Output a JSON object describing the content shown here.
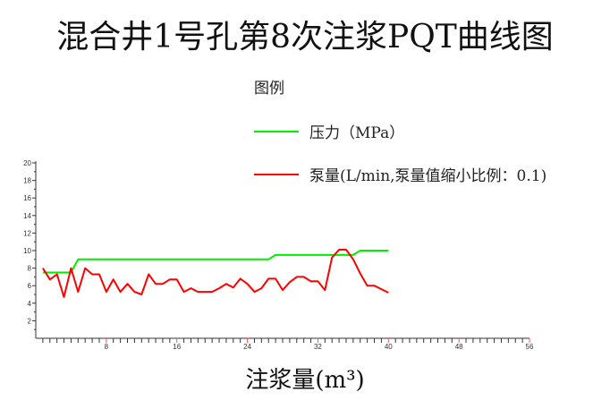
{
  "chart_data": {
    "type": "line",
    "title": "混合井1号孔第8次注浆PQT曲线图",
    "xlabel": "注浆量(m³)",
    "ylabel": "",
    "legend_title": "图例",
    "legend_placement": "top-right",
    "xlim": [
      0,
      56
    ],
    "ylim": [
      0,
      20
    ],
    "xticks": [
      8,
      16,
      24,
      32,
      40,
      48,
      56
    ],
    "yticks": [
      2,
      4,
      6,
      8,
      10,
      12,
      14,
      16,
      18,
      20
    ],
    "grid": false,
    "x": [
      0.8,
      1.6,
      2.4,
      3.2,
      4.0,
      4.8,
      5.6,
      6.4,
      7.2,
      8.0,
      8.8,
      9.6,
      10.4,
      11.2,
      12.0,
      12.8,
      13.6,
      14.4,
      15.2,
      16.0,
      16.8,
      17.6,
      18.4,
      19.2,
      20.0,
      20.8,
      21.6,
      22.4,
      23.2,
      24.0,
      24.8,
      25.6,
      26.4,
      27.2,
      28.0,
      28.8,
      29.6,
      30.4,
      31.2,
      32.0,
      32.8,
      33.6,
      34.4,
      35.2,
      36.0,
      36.8,
      37.6,
      38.4,
      39.2,
      40.0
    ],
    "series": [
      {
        "name": "压力（MPa）",
        "color": "#00ee00",
        "values": [
          7.5,
          7.5,
          7.5,
          7.5,
          7.5,
          9,
          9,
          9,
          9,
          9,
          9,
          9,
          9,
          9,
          9,
          9,
          9,
          9,
          9,
          9,
          9,
          9,
          9,
          9,
          9,
          9,
          9,
          9,
          9,
          9,
          9,
          9,
          9,
          9.5,
          9.5,
          9.5,
          9.5,
          9.5,
          9.5,
          9.5,
          9.5,
          9.5,
          9.5,
          9.5,
          9.5,
          10,
          10,
          10,
          10,
          10
        ]
      },
      {
        "name": "泵量(L/min,泵量值缩小比例：0.1)",
        "color": "#ff0000",
        "values": [
          8.0,
          6.7,
          7.3,
          4.7,
          8.0,
          5.3,
          8.0,
          7.3,
          7.3,
          5.3,
          6.7,
          5.3,
          6.2,
          5.3,
          5.0,
          7.3,
          6.2,
          6.2,
          6.7,
          6.7,
          5.3,
          5.7,
          5.3,
          5.3,
          5.3,
          5.7,
          6.2,
          5.8,
          6.8,
          6.2,
          5.3,
          5.7,
          6.8,
          6.8,
          5.5,
          6.4,
          7.0,
          7.0,
          6.5,
          6.5,
          5.5,
          9.2,
          10.1,
          10.1,
          9.0,
          7.4,
          6.0,
          6.0,
          5.6,
          5.2
        ]
      }
    ]
  }
}
